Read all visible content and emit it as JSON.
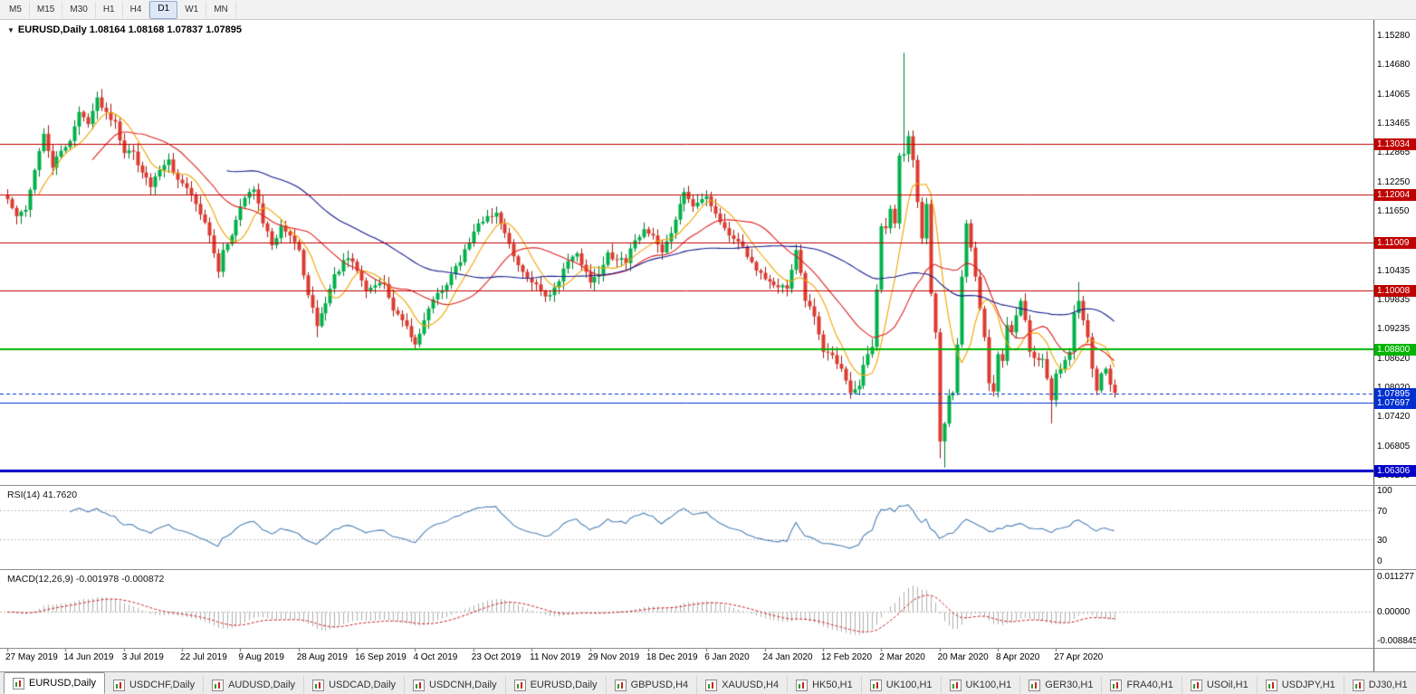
{
  "toolbar": {
    "timeframes": [
      "M5",
      "M15",
      "M30",
      "H1",
      "H4",
      "D1",
      "W1",
      "MN"
    ],
    "active": "D1"
  },
  "chart": {
    "title": "EURUSD,Daily",
    "ohlc": "1.08164 1.08168 1.07837 1.07895",
    "symbol_icon": "dropdown-triangle",
    "y_ticks": [
      "1.15280",
      "1.14680",
      "1.14065",
      "1.13465",
      "1.12865",
      "1.12250",
      "1.11650",
      "1.10435",
      "1.09835",
      "1.09235",
      "1.08620",
      "1.08020",
      "1.07420",
      "1.06805",
      "1.06205"
    ],
    "levels": [
      {
        "value": 1.13034,
        "label": "1.13034",
        "color": "#c00000",
        "width": 1,
        "style": "solid"
      },
      {
        "value": 1.12004,
        "label": "1.12004",
        "color": "#c00000",
        "width": 1,
        "style": "solid"
      },
      {
        "value": 1.11009,
        "label": "1.11009",
        "color": "#c00000",
        "width": 1,
        "style": "solid"
      },
      {
        "value": 1.10008,
        "label": "1.10008",
        "color": "#c00000",
        "width": 1,
        "style": "solid"
      },
      {
        "value": 1.088,
        "label": "1.08800",
        "color": "#00b400",
        "width": 2,
        "style": "solid"
      },
      {
        "value": 1.07895,
        "label": "1.07895",
        "color": "#0030d0",
        "width": 1,
        "style": "dash"
      },
      {
        "value": 1.07697,
        "label": "1.07697",
        "color": "#0030d0",
        "width": 1,
        "style": "solid"
      },
      {
        "value": 1.06306,
        "label": "1.06306",
        "color": "#0000c8",
        "width": 3,
        "style": "solid"
      }
    ],
    "colors": {
      "bull": "#00b24a",
      "bull_edge": "#007a2f",
      "bear": "#dd3b30",
      "bear_edge": "#9e1b12",
      "ma_fast": "#f0a500",
      "ma_mid": "#dd2222",
      "ma_slow": "#151b8d",
      "background": "#ffffff",
      "axis_text": "#000000"
    }
  },
  "chart_data": {
    "type": "candlestick",
    "symbol": "EURUSD",
    "timeframe": "Daily",
    "count": 248,
    "seed": 42,
    "ylim": [
      1.06,
      1.156
    ],
    "price_path": [
      [
        0,
        1.119
      ],
      [
        2,
        1.1155
      ],
      [
        4,
        1.1168
      ],
      [
        6,
        1.125
      ],
      [
        8,
        1.1325
      ],
      [
        10,
        1.1255
      ],
      [
        12,
        1.129
      ],
      [
        14,
        1.131
      ],
      [
        16,
        1.137
      ],
      [
        18,
        1.1345
      ],
      [
        20,
        1.14
      ],
      [
        22,
        1.137
      ],
      [
        24,
        1.135
      ],
      [
        26,
        1.1285
      ],
      [
        28,
        1.1288
      ],
      [
        30,
        1.1245
      ],
      [
        32,
        1.1215
      ],
      [
        34,
        1.125
      ],
      [
        36,
        1.1272
      ],
      [
        38,
        1.123
      ],
      [
        40,
        1.1213
      ],
      [
        42,
        1.118
      ],
      [
        44,
        1.1142
      ],
      [
        46,
        1.1078
      ],
      [
        47,
        1.104
      ],
      [
        48,
        1.1085
      ],
      [
        50,
        1.1115
      ],
      [
        52,
        1.1175
      ],
      [
        54,
        1.1205
      ],
      [
        55,
        1.121
      ],
      [
        57,
        1.114
      ],
      [
        59,
        1.1095
      ],
      [
        61,
        1.1135
      ],
      [
        63,
        1.1115
      ],
      [
        65,
        1.1085
      ],
      [
        67,
        1.0992
      ],
      [
        69,
        1.0928
      ],
      [
        71,
        1.0975
      ],
      [
        73,
        1.1035
      ],
      [
        76,
        1.1068
      ],
      [
        78,
        1.1042
      ],
      [
        80,
        1.1
      ],
      [
        82,
        1.1012
      ],
      [
        84,
        1.1015
      ],
      [
        86,
        1.096
      ],
      [
        88,
        1.094
      ],
      [
        90,
        1.0905
      ],
      [
        91,
        1.089
      ],
      [
        93,
        1.094
      ],
      [
        95,
        1.0983
      ],
      [
        97,
        1.1002
      ],
      [
        99,
        1.1035
      ],
      [
        101,
        1.106
      ],
      [
        103,
        1.11
      ],
      [
        105,
        1.114
      ],
      [
        107,
        1.1155
      ],
      [
        109,
        1.1162
      ],
      [
        111,
        1.112
      ],
      [
        113,
        1.1072
      ],
      [
        115,
        1.104
      ],
      [
        117,
        1.1018
      ],
      [
        119,
        1.1
      ],
      [
        121,
        1.0992
      ],
      [
        123,
        1.102
      ],
      [
        125,
        1.1062
      ],
      [
        127,
        1.1078
      ],
      [
        129,
        1.104
      ],
      [
        130,
        1.1018
      ],
      [
        132,
        1.1035
      ],
      [
        134,
        1.108
      ],
      [
        136,
        1.1065
      ],
      [
        138,
        1.1058
      ],
      [
        140,
        1.1105
      ],
      [
        142,
        1.1128
      ],
      [
        144,
        1.1115
      ],
      [
        146,
        1.108
      ],
      [
        148,
        1.112
      ],
      [
        150,
        1.118
      ],
      [
        151,
        1.1205
      ],
      [
        153,
        1.1175
      ],
      [
        156,
        1.1196
      ],
      [
        158,
        1.116
      ],
      [
        160,
        1.113
      ],
      [
        162,
        1.1108
      ],
      [
        164,
        1.1092
      ],
      [
        166,
        1.106
      ],
      [
        168,
        1.1038
      ],
      [
        170,
        1.102
      ],
      [
        172,
        1.1008
      ],
      [
        174,
        1.1005
      ],
      [
        176,
        1.1085
      ],
      [
        178,
        1.098
      ],
      [
        180,
        1.0948
      ],
      [
        182,
        1.0875
      ],
      [
        184,
        1.0868
      ],
      [
        186,
        1.084
      ],
      [
        188,
        1.079
      ],
      [
        190,
        1.0805
      ],
      [
        191,
        1.0848
      ],
      [
        193,
        1.0885
      ],
      [
        195,
        1.1134
      ],
      [
        196,
        1.113
      ],
      [
        197,
        1.117
      ],
      [
        198,
        1.114
      ],
      [
        199,
        1.128
      ],
      [
        200,
        1.1283
      ],
      [
        201,
        1.132
      ],
      [
        202,
        1.1271
      ],
      [
        203,
        1.1184
      ],
      [
        204,
        1.1109
      ],
      [
        205,
        1.118
      ],
      [
        206,
        1.0995
      ],
      [
        207,
        1.0915
      ],
      [
        208,
        1.069
      ],
      [
        209,
        1.0727
      ],
      [
        210,
        1.0785
      ],
      [
        211,
        1.079
      ],
      [
        212,
        1.089
      ],
      [
        213,
        1.103
      ],
      [
        214,
        1.114
      ],
      [
        215,
        1.109
      ],
      [
        216,
        1.103
      ],
      [
        217,
        1.0964
      ],
      [
        218,
        1.0905
      ],
      [
        219,
        1.081
      ],
      [
        220,
        1.0793
      ],
      [
        221,
        1.087
      ],
      [
        222,
        1.0856
      ],
      [
        223,
        1.093
      ],
      [
        224,
        1.0915
      ],
      [
        225,
        1.095
      ],
      [
        226,
        1.098
      ],
      [
        227,
        1.094
      ],
      [
        228,
        1.0875
      ],
      [
        229,
        1.0862
      ],
      [
        230,
        1.0858
      ],
      [
        231,
        1.086
      ],
      [
        232,
        1.082
      ],
      [
        233,
        1.0775
      ],
      [
        234,
        1.083
      ],
      [
        235,
        1.084
      ],
      [
        236,
        1.0858
      ],
      [
        237,
        1.0875
      ],
      [
        238,
        1.0955
      ],
      [
        239,
        1.098
      ],
      [
        240,
        1.094
      ],
      [
        241,
        1.0905
      ],
      [
        242,
        1.084
      ],
      [
        243,
        1.0795
      ],
      [
        244,
        1.083
      ],
      [
        245,
        1.084
      ],
      [
        246,
        1.0807
      ],
      [
        247,
        1.079
      ]
    ],
    "wick_overrides": {
      "20": {
        "high": 1.1412
      },
      "47": {
        "low": 1.1027
      },
      "69": {
        "low": 1.0905
      },
      "91": {
        "low": 1.0879
      },
      "188": {
        "low": 1.0778
      },
      "200": {
        "high": 1.1492
      },
      "208": {
        "low": 1.0655
      },
      "209": {
        "low": 1.0636
      },
      "233": {
        "low": 1.0727
      },
      "239": {
        "high": 1.1019
      }
    },
    "x_labels": [
      {
        "i": 0,
        "label": "27 May 2019"
      },
      {
        "i": 13,
        "label": "14 Jun 2019"
      },
      {
        "i": 26,
        "label": "3 Jul 2019"
      },
      {
        "i": 39,
        "label": "22 Jul 2019"
      },
      {
        "i": 52,
        "label": "9 Aug 2019"
      },
      {
        "i": 65,
        "label": "28 Aug 2019"
      },
      {
        "i": 78,
        "label": "16 Sep 2019"
      },
      {
        "i": 91,
        "label": "4 Oct 2019"
      },
      {
        "i": 104,
        "label": "23 Oct 2019"
      },
      {
        "i": 117,
        "label": "11 Nov 2019"
      },
      {
        "i": 130,
        "label": "29 Nov 2019"
      },
      {
        "i": 143,
        "label": "18 Dec 2019"
      },
      {
        "i": 156,
        "label": "6 Jan 2020"
      },
      {
        "i": 169,
        "label": "24 Jan 2020"
      },
      {
        "i": 182,
        "label": "12 Feb 2020"
      },
      {
        "i": 195,
        "label": "2 Mar 2020"
      },
      {
        "i": 208,
        "label": "20 Mar 2020"
      },
      {
        "i": 221,
        "label": "8 Apr 2020"
      },
      {
        "i": 234,
        "label": "27 Apr 2020"
      }
    ],
    "moving_averages": [
      {
        "period": 8,
        "color": "#f0a500"
      },
      {
        "period": 20,
        "color": "#dd2222"
      },
      {
        "period": 50,
        "color": "#151b8d"
      }
    ],
    "indicators": {
      "rsi": {
        "label": "RSI(14)",
        "value": "41.7620",
        "period": 14,
        "levels": [
          70,
          30
        ],
        "color": "#4d82b8",
        "axis": [
          {
            "text": "100",
            "v": 100
          },
          {
            "text": "70",
            "v": 70
          },
          {
            "text": "30",
            "v": 30
          },
          {
            "text": "0",
            "v": 0
          }
        ]
      },
      "macd": {
        "label": "MACD(12,26,9)",
        "value": "-0.001978 -0.000872",
        "fast": 12,
        "slow": 26,
        "signal": 9,
        "hist_color": "#b0b0b0",
        "signal_color": "#cc2222",
        "range": [
          -0.0095,
          0.012
        ],
        "axis": [
          {
            "text": "0.011277",
            "v": 0.011277
          },
          {
            "text": "0.00000",
            "v": 0
          },
          {
            "text": "-0.008845",
            "v": -0.008845
          }
        ]
      }
    }
  },
  "tabs": {
    "items": [
      "EURUSD,Daily",
      "USDCHF,Daily",
      "AUDUSD,Daily",
      "USDCAD,Daily",
      "USDCNH,Daily",
      "EURUSD,Daily",
      "GBPUSD,H4",
      "XAUUSD,H4",
      "HK50,H1",
      "UK100,H1",
      "UK100,H1",
      "GER30,H1",
      "FRA40,H1",
      "USOil,H1",
      "USDJPY,H1",
      "DJ30,H1"
    ],
    "active_index": 0
  }
}
